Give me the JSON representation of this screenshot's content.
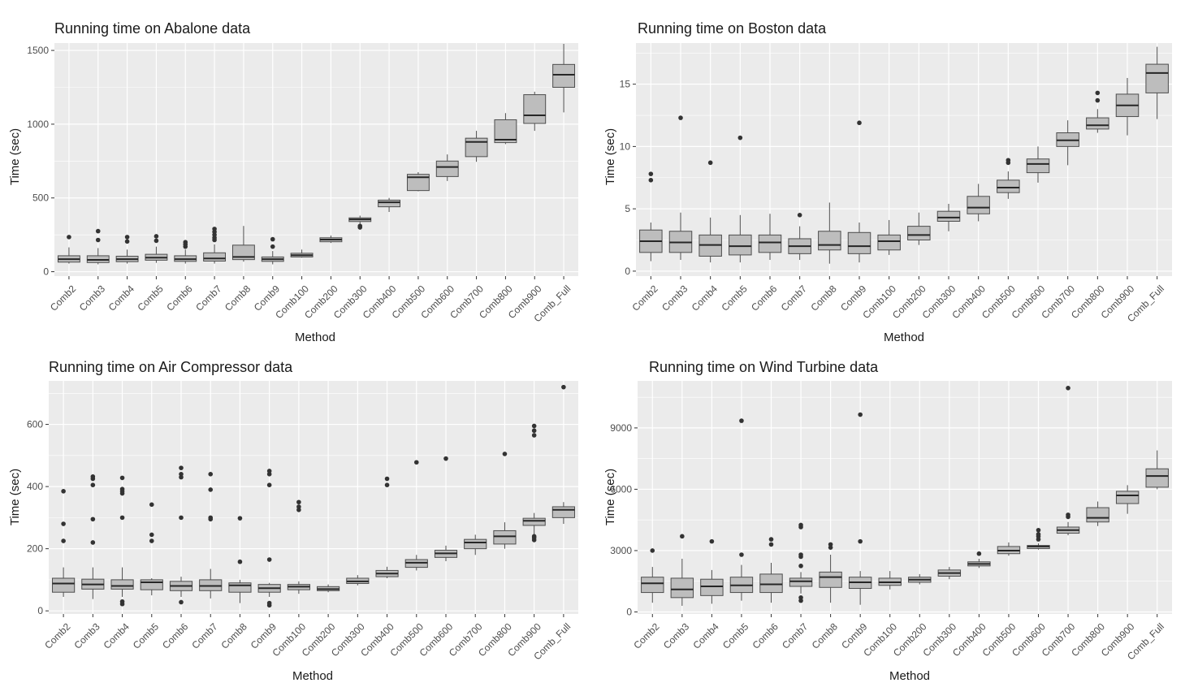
{
  "axis_labels": {
    "x": "Method",
    "y": "Time (sec)"
  },
  "categories": [
    "Comb2",
    "Comb3",
    "Comb4",
    "Comb5",
    "Comb6",
    "Comb7",
    "Comb8",
    "Comb9",
    "Comb100",
    "Comb200",
    "Comb300",
    "Comb400",
    "Comb500",
    "Comb600",
    "Comb700",
    "Comb800",
    "Comb900",
    "Comb_Full"
  ],
  "colors": {
    "panel_bg": "#ebebeb",
    "grid": "#ffffff",
    "box_fill": "#bdbdbd",
    "box_stroke": "#4d4d4d",
    "outlier": "#333333",
    "tick_text": "#4d4d4d",
    "title_text": "#1a1a1a"
  },
  "chart_data": [
    {
      "type": "boxplot",
      "title": "Running time on Abalone data",
      "xlabel": "Method",
      "ylabel": "Time (sec)",
      "ylim": [
        -30,
        1550
      ],
      "yticks": [
        0,
        500,
        1000,
        1500
      ],
      "grid": true,
      "boxes": [
        {
          "category": "Comb2",
          "min": 55,
          "q1": 65,
          "median": 85,
          "q3": 108,
          "max": 165,
          "outliers": [
            235
          ]
        },
        {
          "category": "Comb3",
          "min": 50,
          "q1": 62,
          "median": 80,
          "q3": 108,
          "max": 160,
          "outliers": [
            215,
            275
          ]
        },
        {
          "category": "Comb4",
          "min": 55,
          "q1": 68,
          "median": 85,
          "q3": 105,
          "max": 150,
          "outliers": [
            205,
            235
          ]
        },
        {
          "category": "Comb5",
          "min": 60,
          "q1": 78,
          "median": 95,
          "q3": 118,
          "max": 170,
          "outliers": [
            210,
            240
          ]
        },
        {
          "category": "Comb6",
          "min": 55,
          "q1": 70,
          "median": 85,
          "q3": 108,
          "max": 150,
          "outliers": [
            170,
            185,
            200
          ]
        },
        {
          "category": "Comb7",
          "min": 55,
          "q1": 72,
          "median": 90,
          "q3": 128,
          "max": 185,
          "outliers": [
            215,
            230,
            250,
            270,
            290
          ]
        },
        {
          "category": "Comb8",
          "min": 68,
          "q1": 82,
          "median": 100,
          "q3": 180,
          "max": 310,
          "outliers": []
        },
        {
          "category": "Comb9",
          "min": 50,
          "q1": 70,
          "median": 85,
          "q3": 100,
          "max": 140,
          "outliers": [
            170,
            220
          ]
        },
        {
          "category": "Comb100",
          "min": 95,
          "q1": 100,
          "median": 112,
          "q3": 125,
          "max": 150,
          "outliers": []
        },
        {
          "category": "Comb200",
          "min": 195,
          "q1": 203,
          "median": 218,
          "q3": 230,
          "max": 245,
          "outliers": []
        },
        {
          "category": "Comb300",
          "min": 320,
          "q1": 340,
          "median": 355,
          "q3": 365,
          "max": 380,
          "outliers": [
            300,
            310
          ]
        },
        {
          "category": "Comb400",
          "min": 405,
          "q1": 440,
          "median": 470,
          "q3": 485,
          "max": 500,
          "outliers": []
        },
        {
          "category": "Comb500",
          "min": 545,
          "q1": 550,
          "median": 640,
          "q3": 660,
          "max": 675,
          "outliers": []
        },
        {
          "category": "Comb600",
          "min": 615,
          "q1": 645,
          "median": 710,
          "q3": 750,
          "max": 795,
          "outliers": []
        },
        {
          "category": "Comb700",
          "min": 745,
          "q1": 780,
          "median": 880,
          "q3": 905,
          "max": 955,
          "outliers": []
        },
        {
          "category": "Comb800",
          "min": 865,
          "q1": 875,
          "median": 895,
          "q3": 1030,
          "max": 1075,
          "outliers": []
        },
        {
          "category": "Comb900",
          "min": 955,
          "q1": 1005,
          "median": 1060,
          "q3": 1200,
          "max": 1220,
          "outliers": []
        },
        {
          "category": "Comb_Full",
          "min": 1080,
          "q1": 1250,
          "median": 1335,
          "q3": 1405,
          "max": 1545,
          "outliers": []
        }
      ]
    },
    {
      "type": "boxplot",
      "title": "Running time on Boston data",
      "xlabel": "Method",
      "ylabel": "Time (sec)",
      "ylim": [
        -0.4,
        18.3
      ],
      "yticks": [
        0,
        5,
        10,
        15
      ],
      "grid": true,
      "boxes": [
        {
          "category": "Comb2",
          "min": 0.8,
          "q1": 1.5,
          "median": 2.4,
          "q3": 3.3,
          "max": 3.9,
          "outliers": [
            7.3,
            7.8
          ]
        },
        {
          "category": "Comb3",
          "min": 0.9,
          "q1": 1.5,
          "median": 2.3,
          "q3": 3.2,
          "max": 4.7,
          "outliers": [
            12.3
          ]
        },
        {
          "category": "Comb4",
          "min": 0.7,
          "q1": 1.2,
          "median": 2.1,
          "q3": 2.9,
          "max": 4.3,
          "outliers": [
            8.7
          ]
        },
        {
          "category": "Comb5",
          "min": 0.7,
          "q1": 1.3,
          "median": 2.0,
          "q3": 2.9,
          "max": 4.5,
          "outliers": [
            10.7
          ]
        },
        {
          "category": "Comb6",
          "min": 0.9,
          "q1": 1.5,
          "median": 2.3,
          "q3": 2.9,
          "max": 4.6,
          "outliers": []
        },
        {
          "category": "Comb7",
          "min": 0.9,
          "q1": 1.4,
          "median": 2.0,
          "q3": 2.6,
          "max": 3.6,
          "outliers": [
            4.5
          ]
        },
        {
          "category": "Comb8",
          "min": 0.6,
          "q1": 1.7,
          "median": 2.1,
          "q3": 3.2,
          "max": 5.5,
          "outliers": []
        },
        {
          "category": "Comb9",
          "min": 0.7,
          "q1": 1.4,
          "median": 2.0,
          "q3": 3.1,
          "max": 3.9,
          "outliers": [
            11.9
          ]
        },
        {
          "category": "Comb100",
          "min": 1.3,
          "q1": 1.7,
          "median": 2.4,
          "q3": 2.9,
          "max": 4.1,
          "outliers": []
        },
        {
          "category": "Comb200",
          "min": 2.1,
          "q1": 2.5,
          "median": 2.9,
          "q3": 3.6,
          "max": 4.7,
          "outliers": []
        },
        {
          "category": "Comb300",
          "min": 3.2,
          "q1": 4.0,
          "median": 4.3,
          "q3": 4.8,
          "max": 5.4,
          "outliers": []
        },
        {
          "category": "Comb400",
          "min": 4.0,
          "q1": 4.6,
          "median": 5.1,
          "q3": 6.0,
          "max": 7.0,
          "outliers": []
        },
        {
          "category": "Comb500",
          "min": 5.8,
          "q1": 6.3,
          "median": 6.7,
          "q3": 7.3,
          "max": 8.0,
          "outliers": [
            8.7,
            8.9
          ]
        },
        {
          "category": "Comb600",
          "min": 7.1,
          "q1": 7.9,
          "median": 8.6,
          "q3": 9.0,
          "max": 10.0,
          "outliers": []
        },
        {
          "category": "Comb700",
          "min": 8.5,
          "q1": 10.0,
          "median": 10.5,
          "q3": 11.1,
          "max": 12.1,
          "outliers": []
        },
        {
          "category": "Comb800",
          "min": 11.1,
          "q1": 11.4,
          "median": 11.7,
          "q3": 12.3,
          "max": 13.0,
          "outliers": [
            13.7,
            14.3
          ]
        },
        {
          "category": "Comb900",
          "min": 10.9,
          "q1": 12.4,
          "median": 13.3,
          "q3": 14.2,
          "max": 15.5,
          "outliers": []
        },
        {
          "category": "Comb_Full",
          "min": 12.2,
          "q1": 14.3,
          "median": 15.9,
          "q3": 16.6,
          "max": 18.0,
          "outliers": []
        }
      ]
    },
    {
      "type": "boxplot",
      "title": "Running time on Air Compressor data",
      "xlabel": "Method",
      "ylabel": "Time (sec)",
      "ylim": [
        -10,
        740
      ],
      "yticks": [
        0,
        200,
        400,
        600
      ],
      "grid": true,
      "boxes": [
        {
          "category": "Comb2",
          "min": 45,
          "q1": 60,
          "median": 88,
          "q3": 105,
          "max": 140,
          "outliers": [
            225,
            280,
            385
          ]
        },
        {
          "category": "Comb3",
          "min": 38,
          "q1": 70,
          "median": 85,
          "q3": 102,
          "max": 140,
          "outliers": [
            220,
            295,
            405,
            425,
            432
          ]
        },
        {
          "category": "Comb4",
          "min": 45,
          "q1": 70,
          "median": 80,
          "q3": 100,
          "max": 140,
          "outliers": [
            22,
            30,
            300,
            378,
            385,
            392,
            428
          ]
        },
        {
          "category": "Comb5",
          "min": 50,
          "q1": 68,
          "median": 92,
          "q3": 100,
          "max": 105,
          "outliers": [
            225,
            245,
            342
          ]
        },
        {
          "category": "Comb6",
          "min": 45,
          "q1": 65,
          "median": 80,
          "q3": 95,
          "max": 110,
          "outliers": [
            28,
            300,
            430,
            440,
            460
          ]
        },
        {
          "category": "Comb7",
          "min": 40,
          "q1": 65,
          "median": 80,
          "q3": 100,
          "max": 135,
          "outliers": [
            295,
            300,
            390,
            440
          ]
        },
        {
          "category": "Comb8",
          "min": 25,
          "q1": 60,
          "median": 82,
          "q3": 90,
          "max": 100,
          "outliers": [
            158,
            298
          ]
        },
        {
          "category": "Comb9",
          "min": 45,
          "q1": 60,
          "median": 73,
          "q3": 85,
          "max": 90,
          "outliers": [
            18,
            25,
            165,
            405,
            440,
            450
          ]
        },
        {
          "category": "Comb100",
          "min": 55,
          "q1": 68,
          "median": 78,
          "q3": 85,
          "max": 95,
          "outliers": [
            325,
            335,
            350
          ]
        },
        {
          "category": "Comb200",
          "min": 60,
          "q1": 65,
          "median": 70,
          "q3": 78,
          "max": 85,
          "outliers": []
        },
        {
          "category": "Comb300",
          "min": 82,
          "q1": 88,
          "median": 95,
          "q3": 105,
          "max": 115,
          "outliers": []
        },
        {
          "category": "Comb400",
          "min": 105,
          "q1": 110,
          "median": 120,
          "q3": 130,
          "max": 142,
          "outliers": [
            405,
            425
          ]
        },
        {
          "category": "Comb500",
          "min": 130,
          "q1": 140,
          "median": 155,
          "q3": 165,
          "max": 180,
          "outliers": [
            478
          ]
        },
        {
          "category": "Comb600",
          "min": 160,
          "q1": 172,
          "median": 185,
          "q3": 195,
          "max": 210,
          "outliers": [
            490
          ]
        },
        {
          "category": "Comb700",
          "min": 180,
          "q1": 200,
          "median": 220,
          "q3": 230,
          "max": 245,
          "outliers": []
        },
        {
          "category": "Comb800",
          "min": 200,
          "q1": 215,
          "median": 240,
          "q3": 258,
          "max": 285,
          "outliers": [
            505
          ]
        },
        {
          "category": "Comb900",
          "min": 240,
          "q1": 275,
          "median": 290,
          "q3": 298,
          "max": 315,
          "outliers": [
            228,
            235,
            240,
            565,
            580,
            595
          ]
        },
        {
          "category": "Comb_Full",
          "min": 280,
          "q1": 300,
          "median": 325,
          "q3": 335,
          "max": 350,
          "outliers": [
            720
          ]
        }
      ]
    },
    {
      "type": "boxplot",
      "title": "Running time on Wind Turbine data",
      "xlabel": "Method",
      "ylabel": "Time (sec)",
      "ylim": [
        -100,
        11300
      ],
      "yticks": [
        0,
        3000,
        6000,
        9000
      ],
      "grid": true,
      "boxes": [
        {
          "category": "Comb2",
          "min": 450,
          "q1": 950,
          "median": 1400,
          "q3": 1700,
          "max": 2200,
          "outliers": [
            3000
          ]
        },
        {
          "category": "Comb3",
          "min": 300,
          "q1": 700,
          "median": 1100,
          "q3": 1650,
          "max": 2600,
          "outliers": [
            3700
          ]
        },
        {
          "category": "Comb4",
          "min": 400,
          "q1": 800,
          "median": 1250,
          "q3": 1600,
          "max": 2050,
          "outliers": [
            3450
          ]
        },
        {
          "category": "Comb5",
          "min": 550,
          "q1": 950,
          "median": 1300,
          "q3": 1700,
          "max": 2300,
          "outliers": [
            2800,
            9350
          ]
        },
        {
          "category": "Comb6",
          "min": 450,
          "q1": 950,
          "median": 1350,
          "q3": 1850,
          "max": 2400,
          "outliers": [
            3300,
            3550
          ]
        },
        {
          "category": "Comb7",
          "min": 900,
          "q1": 1250,
          "median": 1500,
          "q3": 1650,
          "max": 1950,
          "outliers": [
            550,
            700,
            2250,
            2700,
            2800,
            4150,
            4250
          ]
        },
        {
          "category": "Comb8",
          "min": 450,
          "q1": 1200,
          "median": 1700,
          "q3": 1950,
          "max": 2800,
          "outliers": [
            3150,
            3300
          ]
        },
        {
          "category": "Comb9",
          "min": 350,
          "q1": 1150,
          "median": 1450,
          "q3": 1700,
          "max": 2000,
          "outliers": [
            3450,
            9650
          ]
        },
        {
          "category": "Comb100",
          "min": 1100,
          "q1": 1300,
          "median": 1450,
          "q3": 1650,
          "max": 2000,
          "outliers": []
        },
        {
          "category": "Comb200",
          "min": 1350,
          "q1": 1450,
          "median": 1580,
          "q3": 1700,
          "max": 1850,
          "outliers": []
        },
        {
          "category": "Comb300",
          "min": 1600,
          "q1": 1750,
          "median": 1900,
          "q3": 2050,
          "max": 2200,
          "outliers": []
        },
        {
          "category": "Comb400",
          "min": 2150,
          "q1": 2250,
          "median": 2350,
          "q3": 2450,
          "max": 2600,
          "outliers": [
            2850
          ]
        },
        {
          "category": "Comb500",
          "min": 2750,
          "q1": 2850,
          "median": 3000,
          "q3": 3200,
          "max": 3400,
          "outliers": []
        },
        {
          "category": "Comb600",
          "min": 3050,
          "q1": 3100,
          "median": 3200,
          "q3": 3250,
          "max": 3350,
          "outliers": [
            3550,
            3700,
            3800,
            4000
          ]
        },
        {
          "category": "Comb700",
          "min": 3750,
          "q1": 3850,
          "median": 4000,
          "q3": 4150,
          "max": 4400,
          "outliers": [
            4650,
            4750,
            10950
          ]
        },
        {
          "category": "Comb800",
          "min": 4200,
          "q1": 4400,
          "median": 4600,
          "q3": 5100,
          "max": 5400,
          "outliers": []
        },
        {
          "category": "Comb900",
          "min": 4800,
          "q1": 5300,
          "median": 5700,
          "q3": 5900,
          "max": 6200,
          "outliers": []
        },
        {
          "category": "Comb_Full",
          "min": 6000,
          "q1": 6100,
          "median": 6650,
          "q3": 7000,
          "max": 7900,
          "outliers": []
        }
      ]
    }
  ]
}
